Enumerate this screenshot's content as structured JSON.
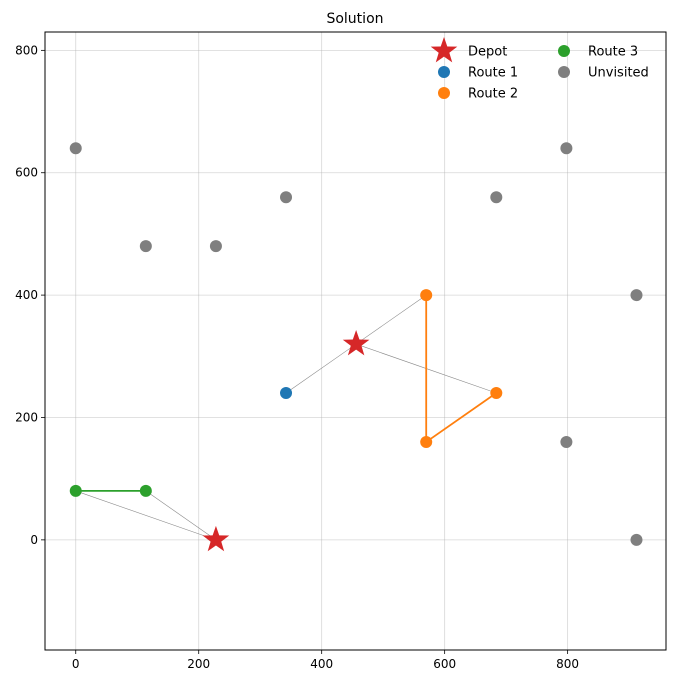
{
  "chart_data": {
    "type": "scatter",
    "title": "Solution",
    "xlabel": "",
    "ylabel": "",
    "xlim": [
      -50,
      960
    ],
    "ylim": [
      -180,
      830
    ],
    "x_ticks": [
      0,
      200,
      400,
      600,
      800
    ],
    "y_ticks": [
      0,
      200,
      400,
      600,
      800
    ],
    "x_tick_labels": [
      "0",
      "200",
      "400",
      "600",
      "800"
    ],
    "y_tick_labels": [
      "0",
      "200",
      "400",
      "600",
      "800"
    ],
    "grid": true,
    "legend_position": "top-right",
    "depots": [
      {
        "x": 228,
        "y": 0
      },
      {
        "x": 456,
        "y": 320
      }
    ],
    "routes": [
      {
        "name": "Route 1",
        "color": "#1f77b4",
        "depot": 1,
        "points": [
          {
            "x": 342,
            "y": 240
          }
        ]
      },
      {
        "name": "Route 2",
        "color": "#ff7f0e",
        "depot": 1,
        "points": [
          {
            "x": 570,
            "y": 400
          },
          {
            "x": 570,
            "y": 160
          },
          {
            "x": 684,
            "y": 240
          }
        ]
      },
      {
        "name": "Route 3",
        "color": "#2ca02c",
        "depot": 0,
        "points": [
          {
            "x": 114,
            "y": 80
          },
          {
            "x": 0,
            "y": 80
          }
        ]
      }
    ],
    "unvisited": {
      "name": "Unvisited",
      "color": "#7f7f7f",
      "points": [
        {
          "x": 0,
          "y": 640
        },
        {
          "x": 114,
          "y": 480
        },
        {
          "x": 228,
          "y": 480
        },
        {
          "x": 342,
          "y": 560
        },
        {
          "x": 684,
          "y": 560
        },
        {
          "x": 798,
          "y": 640
        },
        {
          "x": 912,
          "y": 400
        },
        {
          "x": 798,
          "y": 160
        },
        {
          "x": 912,
          "y": 0
        }
      ]
    },
    "depot_legend": {
      "name": "Depot",
      "color": "#d62728"
    },
    "legend": [
      "Depot",
      "Route 1",
      "Route 2",
      "Route 3",
      "Unvisited"
    ]
  }
}
